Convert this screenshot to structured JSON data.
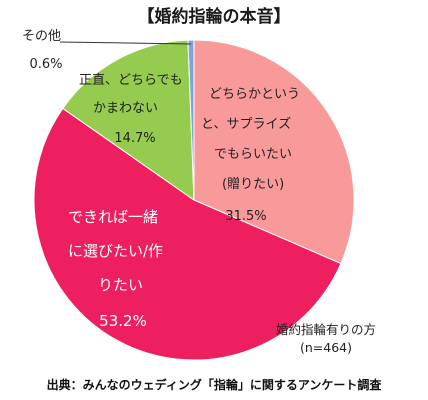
{
  "chart_data": {
    "type": "pie",
    "title": "【婚約指輪の本音】",
    "slices": [
      {
        "label": "どちらかというと、サプライズでもらいたい（贈りたい）",
        "value": 31.5,
        "value_label": "31.5%",
        "color": "#f99a9a"
      },
      {
        "label": "できれば一緒に選びたい/作りたい",
        "value": 53.2,
        "value_label": "53.2%",
        "color": "#ee1f5f"
      },
      {
        "label": "正直、どちらでもかまわない",
        "value": 14.7,
        "value_label": "14.7%",
        "color": "#95cc4f"
      },
      {
        "label": "その他",
        "value": 0.6,
        "value_label": "0.6%",
        "color": "#7ea7d8"
      }
    ],
    "base_note": [
      "婚約指輪有りの方",
      "(n=464)"
    ],
    "source": "出典：みんなのウェディング「指輪」に関するアンケート調査"
  },
  "label_lines": {
    "slice0": [
      "どちらかという",
      "と、サプライズ",
      "でもらいたい",
      "(贈りたい)"
    ],
    "slice1": [
      "できれば一緒",
      "に選びたい/作",
      "りたい"
    ],
    "slice2": [
      "正直、どちらでも",
      "かまわない"
    ],
    "slice3": [
      "その他"
    ]
  }
}
